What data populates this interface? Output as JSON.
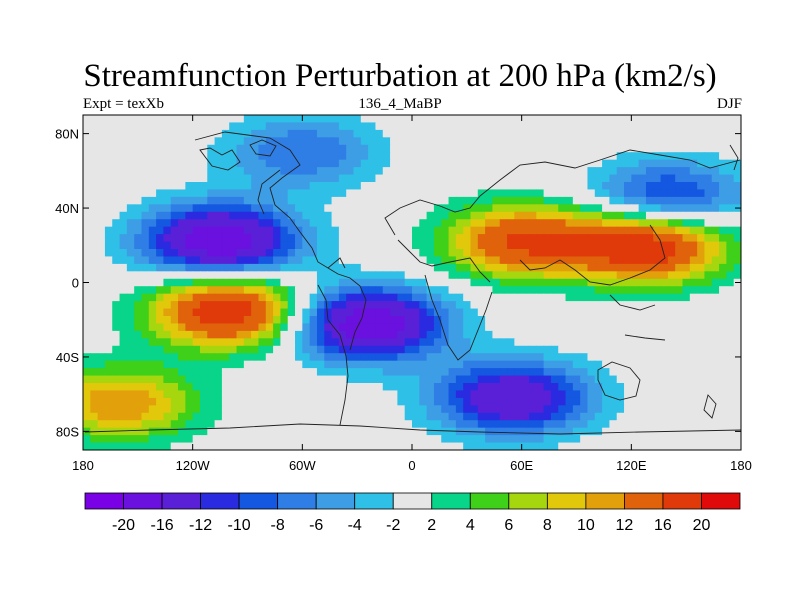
{
  "chart_data": {
    "type": "heatmap",
    "title": "Streamfunction Perturbation at 200 hPa (km2/s)",
    "left_label": "Expt = texXb",
    "center_label": "136_4_MaBP",
    "right_label": "DJF",
    "x_ticks": [
      {
        "lon": -180,
        "label": "180"
      },
      {
        "lon": -120,
        "label": "120W"
      },
      {
        "lon": -60,
        "label": "60W"
      },
      {
        "lon": 0,
        "label": "0"
      },
      {
        "lon": 60,
        "label": "60E"
      },
      {
        "lon": 120,
        "label": "120E"
      },
      {
        "lon": 180,
        "label": "180"
      }
    ],
    "y_ticks": [
      {
        "lat": 80,
        "label": "80N"
      },
      {
        "lat": 40,
        "label": "40N"
      },
      {
        "lat": 0,
        "label": "0"
      },
      {
        "lat": -40,
        "label": "40S"
      },
      {
        "lat": -80,
        "label": "80S"
      }
    ],
    "xlim": [
      -180,
      180
    ],
    "ylim": [
      -90,
      90
    ],
    "colorbar": {
      "levels": [
        "-20",
        "-16",
        "-12",
        "-10",
        "-8",
        "-6",
        "-4",
        "-2",
        "2",
        "4",
        "6",
        "8",
        "10",
        "12",
        "16",
        "20"
      ],
      "colors": [
        "#7a00e6",
        "#6a10df",
        "#5a20d8",
        "#2a2ae0",
        "#1457e0",
        "#2f7ee6",
        "#3d9ee6",
        "#2ec0e6",
        "#e6e6e6",
        "#08d48a",
        "#3fd01a",
        "#a6d60e",
        "#e2c80a",
        "#e2a00a",
        "#e0620a",
        "#e03a0a",
        "#e00a0a"
      ]
    },
    "features": [
      {
        "name": "negative centre North Pacific-America",
        "lon": -105,
        "lat": 22,
        "value": -20
      },
      {
        "name": "positive centre East Pacific south",
        "lon": -100,
        "lat": -15,
        "value": 20
      },
      {
        "name": "negative centre South Atlantic-Africa",
        "lon": -25,
        "lat": -22,
        "value": -20
      },
      {
        "name": "positive centre Africa-Asia",
        "lon": 60,
        "lat": 22,
        "value": 16
      },
      {
        "name": "positive centre West Pacific",
        "lon": 130,
        "lat": 20,
        "value": 20
      },
      {
        "name": "negative centre Southern Ocean",
        "lon": 55,
        "lat": -62,
        "value": -16
      },
      {
        "name": "negative centre North Pacific",
        "lon": 140,
        "lat": 45,
        "value": -12
      },
      {
        "name": "negative centre Arctic-Atlantic",
        "lon": -60,
        "lat": 70,
        "value": -8
      },
      {
        "name": "positive centre South Pacific",
        "lon": -160,
        "lat": -65,
        "value": 12
      }
    ]
  }
}
